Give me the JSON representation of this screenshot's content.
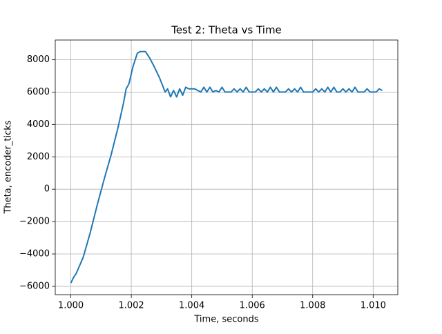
{
  "chart_data": {
    "type": "line",
    "title": "Test 2: Theta vs Time",
    "x_label": "Time, seconds",
    "y_label": "Theta, encoder_ticks",
    "color": "#1f77b4",
    "grid": true,
    "xlim": [
      0.999485,
      1.010815
    ],
    "ylim": [
      -6515,
      9215
    ],
    "xticks": [
      {
        "value": 1.0,
        "label": "1.000"
      },
      {
        "value": 1.002,
        "label": "1.002"
      },
      {
        "value": 1.004,
        "label": "1.004"
      },
      {
        "value": 1.006,
        "label": "1.006"
      },
      {
        "value": 1.008,
        "label": "1.008"
      },
      {
        "value": 1.01,
        "label": "1.010"
      }
    ],
    "yticks": [
      {
        "value": -6000,
        "label": "−6000"
      },
      {
        "value": -4000,
        "label": "−4000"
      },
      {
        "value": -2000,
        "label": "−2000"
      },
      0,
      2000,
      4000,
      6000,
      8000
    ],
    "x": [
      1.0,
      1.00009,
      1.00018,
      1.00041,
      1.00064,
      1.00087,
      1.0011,
      1.00133,
      1.00156,
      1.00174,
      1.00183,
      1.00192,
      1.00206,
      1.0022,
      1.00229,
      1.00247,
      1.00261,
      1.00275,
      1.00293,
      1.00312,
      1.0032,
      1.0033,
      1.0034,
      1.0035,
      1.0036,
      1.0037,
      1.0038,
      1.0039,
      1.004,
      1.0041,
      1.0042,
      1.0043,
      1.0044,
      1.0045,
      1.0046,
      1.0047,
      1.0048,
      1.0049,
      1.005,
      1.0051,
      1.0052,
      1.0053,
      1.0054,
      1.0055,
      1.0056,
      1.0057,
      1.0058,
      1.0059,
      1.006,
      1.0061,
      1.0062,
      1.0063,
      1.0064,
      1.0065,
      1.0066,
      1.0067,
      1.0068,
      1.0069,
      1.007,
      1.0071,
      1.0072,
      1.0073,
      1.0074,
      1.0075,
      1.0076,
      1.0077,
      1.0078,
      1.0079,
      1.008,
      1.0081,
      1.0082,
      1.0083,
      1.0084,
      1.0085,
      1.0086,
      1.0087,
      1.0088,
      1.0089,
      1.009,
      1.0091,
      1.0092,
      1.0093,
      1.0094,
      1.0095,
      1.0096,
      1.0097,
      1.0098,
      1.0099,
      1.01,
      1.0101,
      1.0102,
      1.0103
    ],
    "values": [
      -5800,
      -5450,
      -5200,
      -4200,
      -2700,
      -1000,
      600,
      2100,
      3800,
      5300,
      6200,
      6500,
      7600,
      8400,
      8500,
      8500,
      8100,
      7600,
      6900,
      6000,
      6200,
      5700,
      6100,
      5700,
      6200,
      5800,
      6300,
      6200,
      6200,
      6200,
      6100,
      6000,
      6300,
      6000,
      6300,
      6000,
      6100,
      6000,
      6300,
      6000,
      6000,
      6000,
      6200,
      6000,
      6200,
      6000,
      6300,
      6000,
      6000,
      6000,
      6200,
      6000,
      6200,
      6000,
      6300,
      6000,
      6300,
      6000,
      6000,
      6000,
      6200,
      6000,
      6200,
      6000,
      6300,
      6000,
      6000,
      6000,
      6000,
      6200,
      6000,
      6200,
      6000,
      6300,
      6000,
      6300,
      6000,
      6000,
      6200,
      6000,
      6200,
      6000,
      6300,
      6000,
      6000,
      6000,
      6200,
      6000,
      6000,
      6000,
      6200,
      6100
    ]
  }
}
